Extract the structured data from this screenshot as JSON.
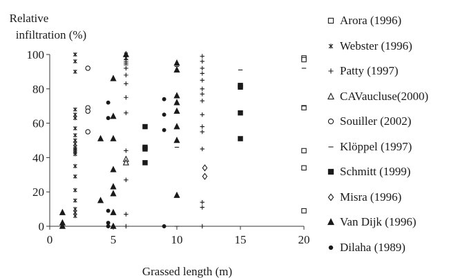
{
  "chart_data": {
    "type": "scatter",
    "title": "",
    "xlabel": "Grassed length (m)",
    "ylabel_line1": "Relative",
    "ylabel_line2": "infiltration (%)",
    "xlim": [
      0,
      20
    ],
    "ylim": [
      0,
      100
    ],
    "x_ticks": [
      0,
      5,
      10,
      15,
      20
    ],
    "y_ticks": [
      0,
      20,
      40,
      60,
      80,
      100
    ],
    "grid": false,
    "legend_position": "right",
    "series": [
      {
        "name": "Arora (1996)",
        "marker": "square-open",
        "points": [
          [
            20,
            98
          ],
          [
            20,
            97
          ],
          [
            20,
            69
          ],
          [
            20,
            44
          ],
          [
            20,
            34
          ],
          [
            20,
            9
          ]
        ]
      },
      {
        "name": "Webster (1996)",
        "marker": "asterisk",
        "points": [
          [
            2,
            100
          ],
          [
            2,
            96
          ],
          [
            2,
            90
          ],
          [
            2,
            68
          ],
          [
            2,
            65
          ],
          [
            2,
            63
          ],
          [
            2,
            57
          ],
          [
            2,
            53
          ],
          [
            2,
            50
          ],
          [
            2,
            48
          ],
          [
            2,
            46
          ],
          [
            2,
            45
          ],
          [
            2,
            44
          ],
          [
            2,
            43
          ],
          [
            2,
            42
          ],
          [
            2,
            35
          ],
          [
            2,
            29
          ],
          [
            2,
            21
          ],
          [
            2,
            15
          ],
          [
            2,
            10
          ],
          [
            2,
            8
          ],
          [
            2,
            6
          ],
          [
            6,
            100
          ],
          [
            6,
            98
          ]
        ]
      },
      {
        "name": "Patty (1997)",
        "marker": "plus",
        "points": [
          [
            6,
            99
          ],
          [
            6,
            97
          ],
          [
            6,
            95
          ],
          [
            6,
            92
          ],
          [
            6,
            88
          ],
          [
            6,
            83
          ],
          [
            6,
            75
          ],
          [
            6,
            66
          ],
          [
            6,
            44
          ],
          [
            6,
            27
          ],
          [
            6,
            7
          ],
          [
            6,
            0
          ],
          [
            12,
            99
          ],
          [
            12,
            96
          ],
          [
            12,
            92
          ],
          [
            12,
            89
          ],
          [
            12,
            85
          ],
          [
            12,
            80
          ],
          [
            12,
            77
          ],
          [
            12,
            73
          ],
          [
            12,
            65
          ],
          [
            12,
            58
          ],
          [
            12,
            55
          ],
          [
            12,
            45
          ],
          [
            12,
            14
          ],
          [
            12,
            11
          ],
          [
            12,
            0
          ]
        ]
      },
      {
        "name": "CAVaucluse(2000)",
        "marker": "triangle-open",
        "points": [
          [
            6,
            39
          ],
          [
            6,
            37
          ]
        ]
      },
      {
        "name": "Souiller (2002)",
        "marker": "circle-open",
        "points": [
          [
            3,
            92
          ],
          [
            3,
            69
          ],
          [
            3,
            67
          ],
          [
            3,
            55
          ]
        ]
      },
      {
        "name": "Klöppel (1997)",
        "marker": "dash",
        "points": [
          [
            6,
            96
          ],
          [
            6,
            94
          ],
          [
            10,
            93
          ],
          [
            10,
            46
          ],
          [
            10,
            0
          ],
          [
            15,
            91
          ],
          [
            20,
            92
          ],
          [
            20,
            70
          ]
        ]
      },
      {
        "name": "Schmitt (1999)",
        "marker": "square-filled",
        "points": [
          [
            7.5,
            58
          ],
          [
            7.5,
            46
          ],
          [
            7.5,
            45
          ],
          [
            7.5,
            37
          ],
          [
            15,
            82
          ],
          [
            15,
            81
          ],
          [
            15,
            66
          ],
          [
            15,
            51
          ]
        ]
      },
      {
        "name": "Misra (1996)",
        "marker": "diamond-open",
        "points": [
          [
            12.2,
            34
          ],
          [
            12.2,
            29
          ]
        ]
      },
      {
        "name": "Van Dijk (1996)",
        "marker": "triangle-filled",
        "points": [
          [
            1,
            8
          ],
          [
            1,
            2
          ],
          [
            1,
            0
          ],
          [
            4,
            51
          ],
          [
            4,
            15
          ],
          [
            5,
            86
          ],
          [
            5,
            64
          ],
          [
            5,
            51
          ],
          [
            5,
            33
          ],
          [
            5,
            23
          ],
          [
            5,
            19
          ],
          [
            5,
            8
          ],
          [
            5,
            0
          ],
          [
            6,
            100
          ],
          [
            10,
            95
          ],
          [
            10,
            91
          ],
          [
            10,
            76
          ],
          [
            10,
            72
          ],
          [
            10,
            67
          ],
          [
            10,
            58
          ],
          [
            10,
            50
          ],
          [
            10,
            18
          ]
        ]
      },
      {
        "name": "Dilaha (1989)",
        "marker": "dot",
        "points": [
          [
            4.6,
            72
          ],
          [
            4.6,
            63
          ],
          [
            4.6,
            9
          ],
          [
            4.6,
            2
          ],
          [
            4.6,
            0
          ],
          [
            9,
            74
          ],
          [
            9,
            65
          ],
          [
            9,
            56
          ],
          [
            9,
            0
          ]
        ]
      }
    ]
  }
}
